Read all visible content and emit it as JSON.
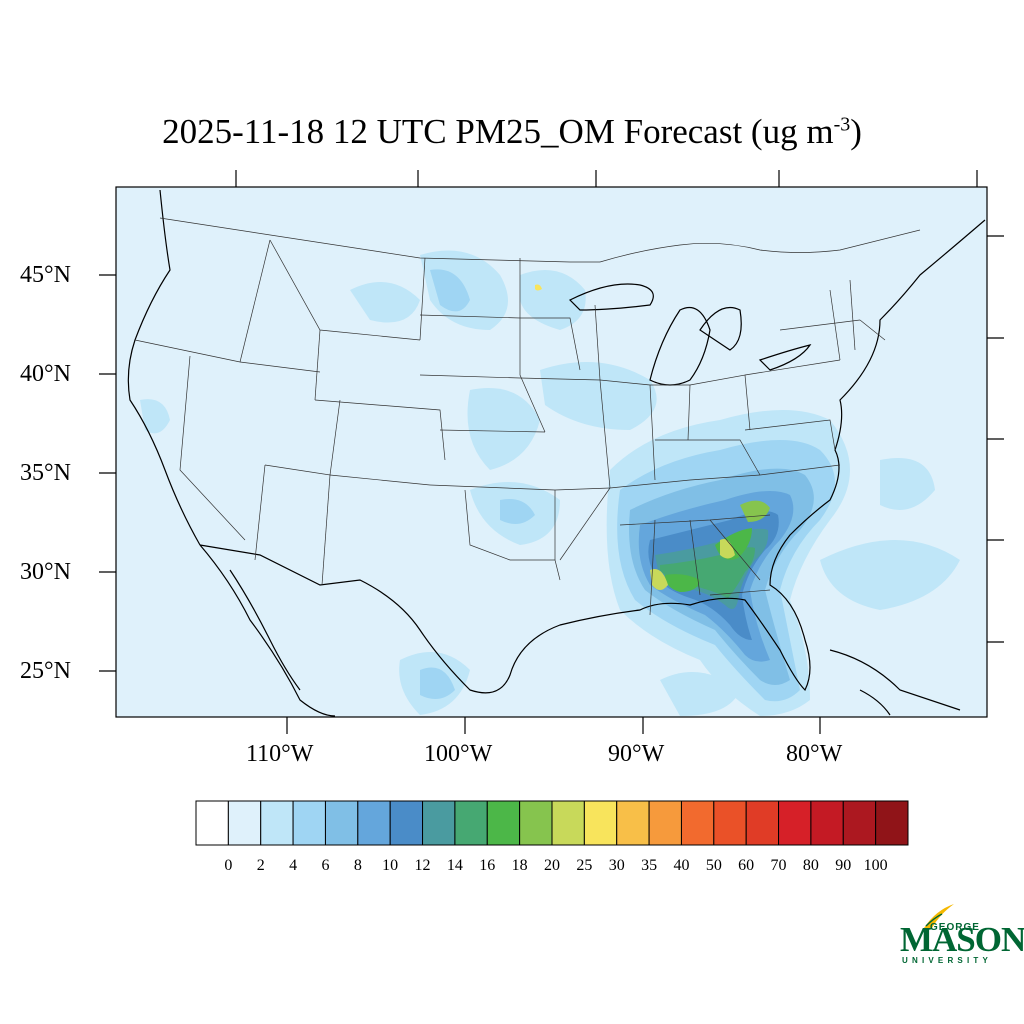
{
  "title": {
    "main": "2025-11-18 12 UTC PM25_OM Forecast (ug m",
    "exponent": "-3",
    "close": ")"
  },
  "map": {
    "lat_labels": [
      "45°N",
      "40°N",
      "35°N",
      "30°N",
      "25°N"
    ],
    "lon_labels": [
      "110°W",
      "100°W",
      "90°W",
      "80°W"
    ],
    "background_color": "#dff1fb",
    "border_color": "#000000"
  },
  "colorbar": {
    "labels": [
      "0",
      "2",
      "4",
      "6",
      "8",
      "10",
      "12",
      "14",
      "16",
      "18",
      "20",
      "25",
      "30",
      "35",
      "40",
      "50",
      "60",
      "70",
      "80",
      "90",
      "100"
    ],
    "colors": [
      "#ffffff",
      "#dff1fb",
      "#bfe6f8",
      "#9fd5f3",
      "#80bfe6",
      "#64a6dc",
      "#4a8cc8",
      "#4a9ba0",
      "#46a872",
      "#4cb748",
      "#86c44e",
      "#c8d95a",
      "#f8e45c",
      "#f8bf48",
      "#f69a3c",
      "#f26a2e",
      "#ea5128",
      "#e03c26",
      "#d62028",
      "#c41a24",
      "#ac1820",
      "#901418"
    ]
  },
  "logo": {
    "line1": "GEORGE",
    "line2": "MASON",
    "line3": "UNIVERSITY",
    "color": "#006633",
    "accent": "#f5b800"
  }
}
